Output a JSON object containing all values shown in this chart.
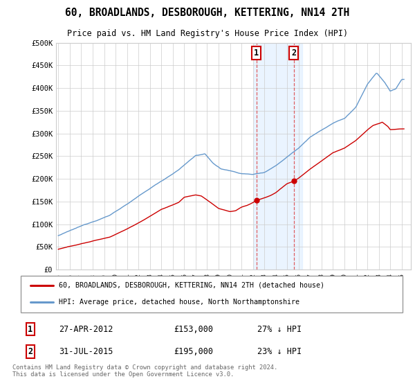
{
  "title": "60, BROADLANDS, DESBOROUGH, KETTERING, NN14 2TH",
  "subtitle": "Price paid vs. HM Land Registry's House Price Index (HPI)",
  "legend_line1": "60, BROADLANDS, DESBOROUGH, KETTERING, NN14 2TH (detached house)",
  "legend_line2": "HPI: Average price, detached house, North Northamptonshire",
  "footnote": "Contains HM Land Registry data © Crown copyright and database right 2024.\nThis data is licensed under the Open Government Licence v3.0.",
  "sale1_date": "27-APR-2012",
  "sale1_price": "£153,000",
  "sale1_hpi": "27% ↓ HPI",
  "sale2_date": "31-JUL-2015",
  "sale2_price": "£195,000",
  "sale2_hpi": "23% ↓ HPI",
  "sale1_year": 2012.32,
  "sale1_value": 153000,
  "sale2_year": 2015.58,
  "sale2_value": 195000,
  "red_color": "#cc0000",
  "blue_color": "#6699cc",
  "highlight_color": "#ddeeff",
  "grid_color": "#cccccc",
  "background_color": "#ffffff",
  "ylim": [
    0,
    500000
  ],
  "yticks": [
    0,
    50000,
    100000,
    150000,
    200000,
    250000,
    300000,
    350000,
    400000,
    450000,
    500000
  ],
  "ytick_labels": [
    "£0",
    "£50K",
    "£100K",
    "£150K",
    "£200K",
    "£250K",
    "£300K",
    "£350K",
    "£400K",
    "£450K",
    "£500K"
  ],
  "xlim_start": 1994.8,
  "xlim_end": 2025.8,
  "highlight_x1": 2012.1,
  "highlight_x2": 2016.3
}
